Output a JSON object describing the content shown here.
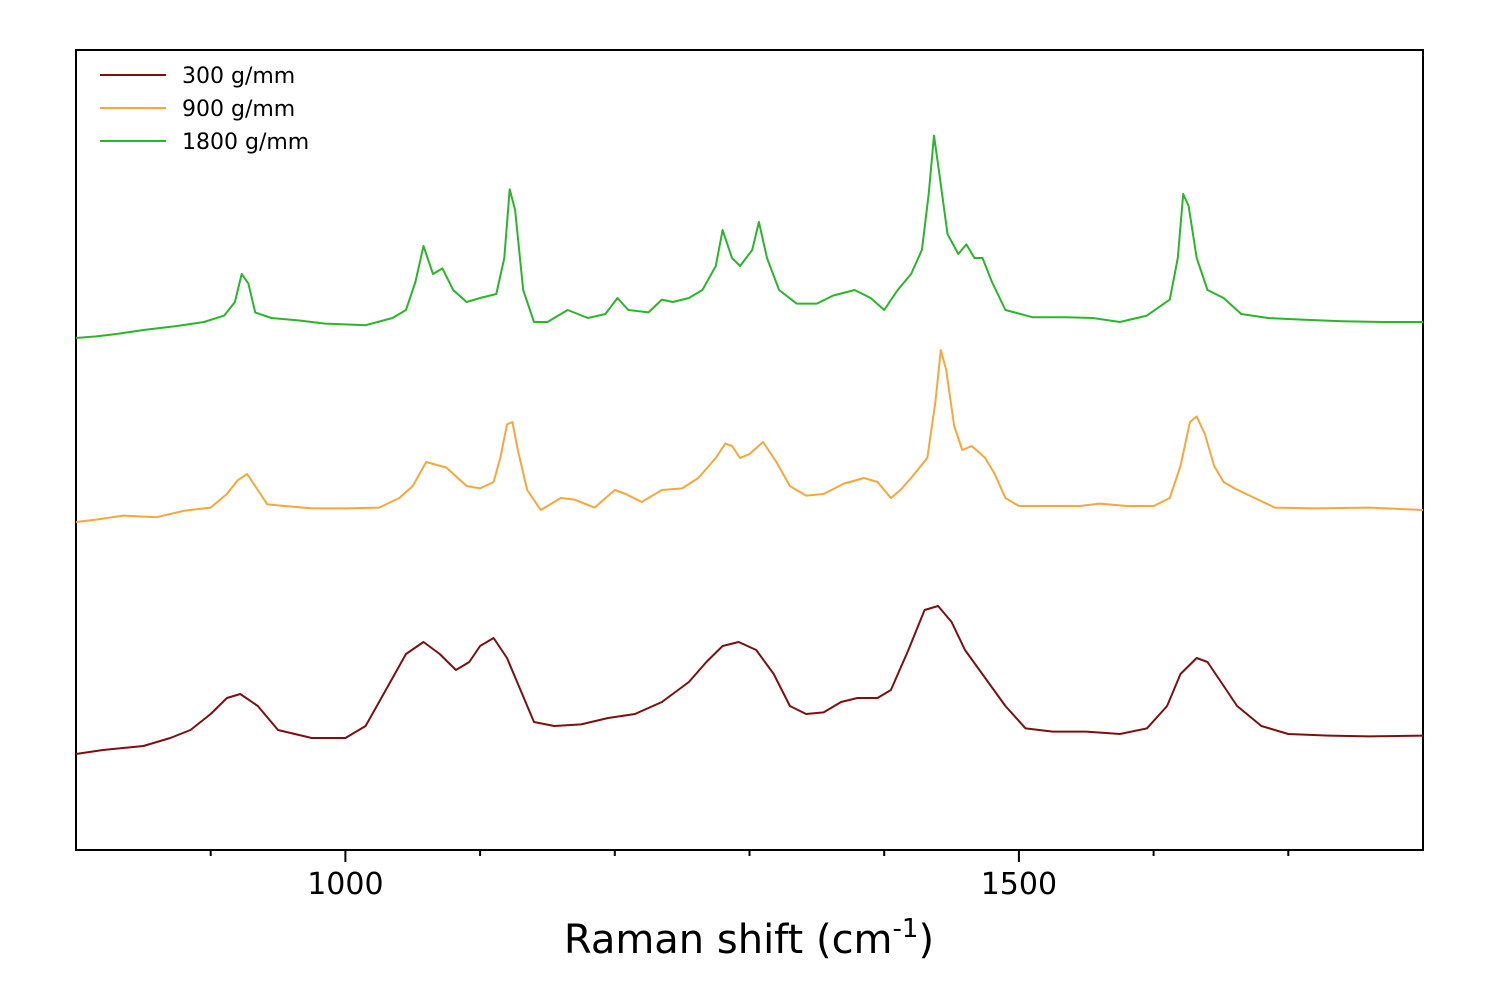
{
  "chart_data": {
    "type": "line",
    "title": "",
    "xlabel_main": "Raman shift (cm",
    "xlabel_sup": "-1",
    "xlabel_close": ")",
    "ylabel": "",
    "xlim": [
      800,
      1800
    ],
    "ylim": [
      0,
      1
    ],
    "xticks_major": [
      1000,
      1500
    ],
    "xtick_labels": [
      "1000",
      "1500"
    ],
    "xticks_minor": [
      900,
      1100,
      1200,
      1300,
      1400,
      1600,
      1700
    ],
    "legend_position": "top-left",
    "series": [
      {
        "name": "300 g/mm",
        "color": "#7a1010",
        "points": [
          [
            800,
            0.12
          ],
          [
            820,
            0.125
          ],
          [
            850,
            0.13
          ],
          [
            870,
            0.14
          ],
          [
            885,
            0.15
          ],
          [
            900,
            0.17
          ],
          [
            912,
            0.19
          ],
          [
            922,
            0.195
          ],
          [
            935,
            0.18
          ],
          [
            950,
            0.15
          ],
          [
            975,
            0.14
          ],
          [
            1000,
            0.14
          ],
          [
            1015,
            0.155
          ],
          [
            1030,
            0.2
          ],
          [
            1045,
            0.245
          ],
          [
            1058,
            0.26
          ],
          [
            1070,
            0.245
          ],
          [
            1082,
            0.225
          ],
          [
            1092,
            0.235
          ],
          [
            1100,
            0.255
          ],
          [
            1110,
            0.265
          ],
          [
            1120,
            0.24
          ],
          [
            1130,
            0.2
          ],
          [
            1140,
            0.16
          ],
          [
            1155,
            0.155
          ],
          [
            1175,
            0.157
          ],
          [
            1195,
            0.165
          ],
          [
            1215,
            0.17
          ],
          [
            1235,
            0.185
          ],
          [
            1255,
            0.21
          ],
          [
            1268,
            0.235
          ],
          [
            1280,
            0.255
          ],
          [
            1292,
            0.26
          ],
          [
            1305,
            0.25
          ],
          [
            1318,
            0.22
          ],
          [
            1330,
            0.18
          ],
          [
            1342,
            0.17
          ],
          [
            1355,
            0.172
          ],
          [
            1368,
            0.185
          ],
          [
            1380,
            0.19
          ],
          [
            1395,
            0.19
          ],
          [
            1405,
            0.2
          ],
          [
            1418,
            0.25
          ],
          [
            1430,
            0.3
          ],
          [
            1440,
            0.305
          ],
          [
            1450,
            0.285
          ],
          [
            1460,
            0.25
          ],
          [
            1475,
            0.215
          ],
          [
            1490,
            0.18
          ],
          [
            1505,
            0.152
          ],
          [
            1525,
            0.148
          ],
          [
            1550,
            0.148
          ],
          [
            1575,
            0.145
          ],
          [
            1595,
            0.152
          ],
          [
            1610,
            0.18
          ],
          [
            1620,
            0.22
          ],
          [
            1632,
            0.24
          ],
          [
            1640,
            0.235
          ],
          [
            1650,
            0.21
          ],
          [
            1662,
            0.18
          ],
          [
            1680,
            0.155
          ],
          [
            1700,
            0.145
          ],
          [
            1730,
            0.143
          ],
          [
            1760,
            0.142
          ],
          [
            1800,
            0.143
          ]
        ]
      },
      {
        "name": "900 g/mm",
        "color": "#f5a73b",
        "points": [
          [
            800,
            0.41
          ],
          [
            815,
            0.413
          ],
          [
            835,
            0.418
          ],
          [
            860,
            0.416
          ],
          [
            880,
            0.424
          ],
          [
            900,
            0.428
          ],
          [
            912,
            0.445
          ],
          [
            920,
            0.462
          ],
          [
            927,
            0.47
          ],
          [
            935,
            0.45
          ],
          [
            942,
            0.432
          ],
          [
            955,
            0.43
          ],
          [
            975,
            0.427
          ],
          [
            1000,
            0.427
          ],
          [
            1025,
            0.428
          ],
          [
            1040,
            0.44
          ],
          [
            1050,
            0.455
          ],
          [
            1060,
            0.485
          ],
          [
            1075,
            0.478
          ],
          [
            1090,
            0.455
          ],
          [
            1100,
            0.452
          ],
          [
            1110,
            0.46
          ],
          [
            1115,
            0.49
          ],
          [
            1120,
            0.532
          ],
          [
            1124,
            0.535
          ],
          [
            1128,
            0.5
          ],
          [
            1135,
            0.45
          ],
          [
            1145,
            0.425
          ],
          [
            1160,
            0.44
          ],
          [
            1170,
            0.438
          ],
          [
            1185,
            0.428
          ],
          [
            1200,
            0.45
          ],
          [
            1208,
            0.445
          ],
          [
            1220,
            0.435
          ],
          [
            1235,
            0.45
          ],
          [
            1250,
            0.452
          ],
          [
            1262,
            0.465
          ],
          [
            1275,
            0.49
          ],
          [
            1282,
            0.508
          ],
          [
            1287,
            0.505
          ],
          [
            1293,
            0.49
          ],
          [
            1300,
            0.495
          ],
          [
            1310,
            0.51
          ],
          [
            1320,
            0.485
          ],
          [
            1330,
            0.455
          ],
          [
            1342,
            0.443
          ],
          [
            1355,
            0.445
          ],
          [
            1370,
            0.458
          ],
          [
            1385,
            0.465
          ],
          [
            1395,
            0.46
          ],
          [
            1405,
            0.44
          ],
          [
            1412,
            0.45
          ],
          [
            1420,
            0.465
          ],
          [
            1432,
            0.49
          ],
          [
            1438,
            0.56
          ],
          [
            1442,
            0.625
          ],
          [
            1446,
            0.6
          ],
          [
            1452,
            0.53
          ],
          [
            1458,
            0.5
          ],
          [
            1465,
            0.505
          ],
          [
            1475,
            0.49
          ],
          [
            1482,
            0.47
          ],
          [
            1490,
            0.44
          ],
          [
            1500,
            0.43
          ],
          [
            1525,
            0.43
          ],
          [
            1545,
            0.43
          ],
          [
            1560,
            0.433
          ],
          [
            1580,
            0.43
          ],
          [
            1600,
            0.43
          ],
          [
            1612,
            0.44
          ],
          [
            1620,
            0.48
          ],
          [
            1627,
            0.535
          ],
          [
            1632,
            0.542
          ],
          [
            1638,
            0.52
          ],
          [
            1645,
            0.48
          ],
          [
            1652,
            0.46
          ],
          [
            1660,
            0.452
          ],
          [
            1675,
            0.44
          ],
          [
            1690,
            0.428
          ],
          [
            1720,
            0.427
          ],
          [
            1760,
            0.428
          ],
          [
            1800,
            0.425
          ]
        ]
      },
      {
        "name": "1800 g/mm",
        "color": "#2ab52a",
        "points": [
          [
            800,
            0.64
          ],
          [
            815,
            0.642
          ],
          [
            830,
            0.645
          ],
          [
            850,
            0.65
          ],
          [
            875,
            0.655
          ],
          [
            895,
            0.66
          ],
          [
            910,
            0.668
          ],
          [
            918,
            0.685
          ],
          [
            923,
            0.72
          ],
          [
            928,
            0.708
          ],
          [
            933,
            0.672
          ],
          [
            945,
            0.665
          ],
          [
            965,
            0.662
          ],
          [
            985,
            0.658
          ],
          [
            1000,
            0.657
          ],
          [
            1015,
            0.656
          ],
          [
            1035,
            0.665
          ],
          [
            1045,
            0.675
          ],
          [
            1052,
            0.71
          ],
          [
            1058,
            0.755
          ],
          [
            1065,
            0.72
          ],
          [
            1072,
            0.727
          ],
          [
            1080,
            0.7
          ],
          [
            1090,
            0.685
          ],
          [
            1100,
            0.69
          ],
          [
            1112,
            0.695
          ],
          [
            1118,
            0.74
          ],
          [
            1122,
            0.826
          ],
          [
            1126,
            0.8
          ],
          [
            1132,
            0.7
          ],
          [
            1140,
            0.66
          ],
          [
            1150,
            0.66
          ],
          [
            1165,
            0.675
          ],
          [
            1180,
            0.665
          ],
          [
            1193,
            0.67
          ],
          [
            1202,
            0.69
          ],
          [
            1210,
            0.675
          ],
          [
            1225,
            0.672
          ],
          [
            1235,
            0.688
          ],
          [
            1243,
            0.685
          ],
          [
            1255,
            0.69
          ],
          [
            1265,
            0.7
          ],
          [
            1275,
            0.73
          ],
          [
            1280,
            0.775
          ],
          [
            1287,
            0.74
          ],
          [
            1293,
            0.73
          ],
          [
            1302,
            0.75
          ],
          [
            1307,
            0.785
          ],
          [
            1313,
            0.74
          ],
          [
            1322,
            0.7
          ],
          [
            1335,
            0.683
          ],
          [
            1350,
            0.683
          ],
          [
            1362,
            0.693
          ],
          [
            1378,
            0.7
          ],
          [
            1390,
            0.69
          ],
          [
            1400,
            0.675
          ],
          [
            1410,
            0.7
          ],
          [
            1420,
            0.72
          ],
          [
            1428,
            0.75
          ],
          [
            1433,
            0.82
          ],
          [
            1437,
            0.893
          ],
          [
            1441,
            0.845
          ],
          [
            1447,
            0.77
          ],
          [
            1455,
            0.745
          ],
          [
            1461,
            0.757
          ],
          [
            1467,
            0.74
          ],
          [
            1473,
            0.74
          ],
          [
            1480,
            0.71
          ],
          [
            1490,
            0.675
          ],
          [
            1510,
            0.666
          ],
          [
            1535,
            0.666
          ],
          [
            1555,
            0.665
          ],
          [
            1575,
            0.66
          ],
          [
            1595,
            0.668
          ],
          [
            1612,
            0.688
          ],
          [
            1618,
            0.74
          ],
          [
            1622,
            0.82
          ],
          [
            1626,
            0.805
          ],
          [
            1632,
            0.74
          ],
          [
            1640,
            0.7
          ],
          [
            1652,
            0.69
          ],
          [
            1665,
            0.67
          ],
          [
            1685,
            0.665
          ],
          [
            1710,
            0.663
          ],
          [
            1740,
            0.661
          ],
          [
            1770,
            0.66
          ],
          [
            1800,
            0.66
          ]
        ]
      }
    ]
  }
}
